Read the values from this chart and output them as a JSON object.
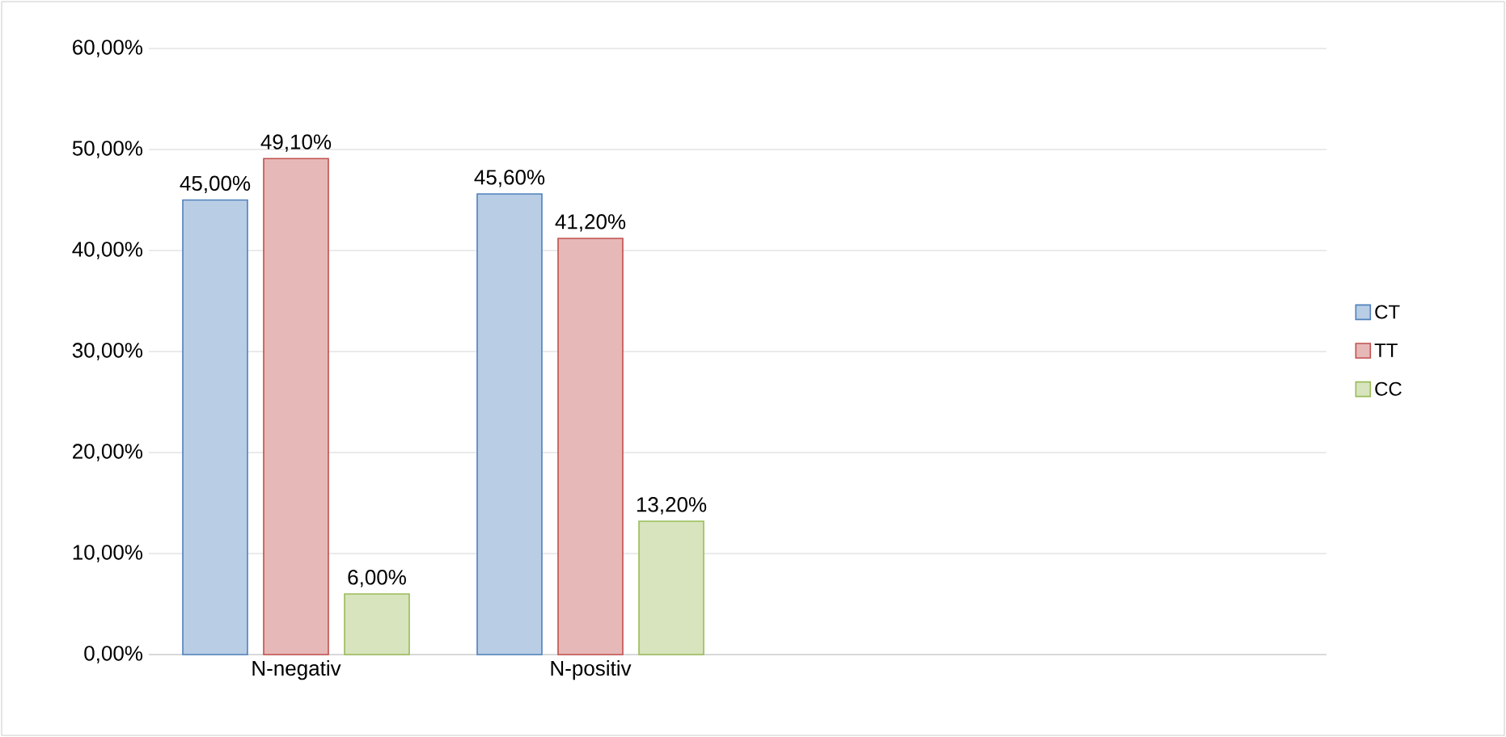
{
  "chart_data": {
    "type": "bar",
    "categories": [
      "N-negativ",
      "N-positiv",
      null,
      null
    ],
    "series": [
      {
        "name": "CT",
        "color": "#4f81bd",
        "values": [
          45.0,
          45.6,
          null,
          null
        ],
        "value_labels": [
          "45,00%",
          "45,60%",
          null,
          null
        ]
      },
      {
        "name": "TT",
        "color": "#c0504d",
        "values": [
          49.1,
          41.2,
          null,
          null
        ],
        "value_labels": [
          "49,10%",
          "41,20%",
          null,
          null
        ]
      },
      {
        "name": "CC",
        "color": "#9bbb59",
        "values": [
          6.0,
          13.2,
          null,
          null
        ],
        "value_labels": [
          "6,00%",
          "13,20%",
          null,
          null
        ]
      }
    ],
    "ylim": [
      0,
      60
    ],
    "yticks": [
      {
        "value": 0,
        "label": "0,00%"
      },
      {
        "value": 10,
        "label": "10,00%"
      },
      {
        "value": 20,
        "label": "20,00%"
      },
      {
        "value": 30,
        "label": "30,00%"
      },
      {
        "value": 40,
        "label": "40,00%"
      },
      {
        "value": 50,
        "label": "50,00%"
      },
      {
        "value": 60,
        "label": "60,00%"
      }
    ],
    "grid": "y",
    "legend": "right"
  }
}
